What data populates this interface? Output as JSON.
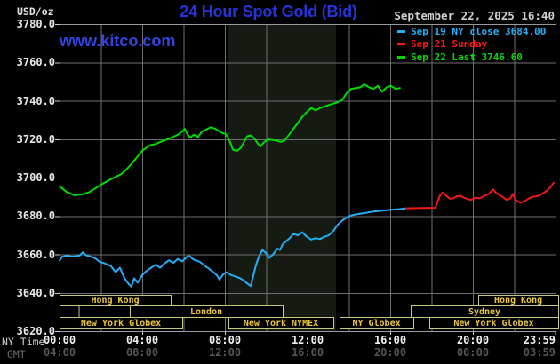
{
  "header": {
    "units": "USD/oz",
    "title": "24 Hour Spot Gold (Bid)",
    "datetime": "September 22, 2025 16:40"
  },
  "watermark": {
    "text": "www.kitco.com"
  },
  "legend": {
    "items": [
      {
        "label": "Sep 19 NY close 3684.00",
        "color": "#25aef5"
      },
      {
        "label": "Sep 21 Sunday",
        "color": "#ff1515"
      },
      {
        "label": "Sep 22 Last 3746.60",
        "color": "#00dc00"
      }
    ]
  },
  "axes": {
    "ny_label": "NY Time",
    "gmt_label": "GMT",
    "ny_ticks": [
      {
        "t": 0,
        "text": "00:00"
      },
      {
        "t": 4,
        "text": "04:00"
      },
      {
        "t": 8,
        "text": "08:00"
      },
      {
        "t": 12,
        "text": "12:00"
      },
      {
        "t": 16,
        "text": "16:00"
      },
      {
        "t": 20,
        "text": "20:00"
      },
      {
        "t": 23.98,
        "lt": 23.22,
        "text": "23:59"
      }
    ],
    "gmt_ticks": [
      {
        "t": 0,
        "text": "04:00"
      },
      {
        "t": 4,
        "text": "08:00"
      },
      {
        "t": 8,
        "text": "12:00"
      },
      {
        "t": 12,
        "text": "16:00"
      },
      {
        "t": 16,
        "text": "20:00"
      },
      {
        "t": 20,
        "text": "00:00"
      },
      {
        "t": 23.98,
        "lt": 23.22,
        "text": "03:59"
      }
    ],
    "y_ticks": [
      {
        "v": 3780,
        "text": "3780.0"
      },
      {
        "v": 3760,
        "text": "3760.0"
      },
      {
        "v": 3740,
        "text": "3740.0"
      },
      {
        "v": 3720,
        "text": "3720.0"
      },
      {
        "v": 3700,
        "text": "3700.0"
      },
      {
        "v": 3680,
        "text": "3680.0"
      },
      {
        "v": 3660,
        "text": "3660.0"
      },
      {
        "v": 3640,
        "text": "3640.0"
      },
      {
        "v": 3620,
        "text": "3620.0"
      }
    ]
  },
  "market_sessions": {
    "rows": [
      {
        "row": 1,
        "boxes": [
          {
            "start": 0,
            "end": 5.38,
            "label": "Hong Kong"
          },
          {
            "start": 20.26,
            "end": 24.13,
            "label": "Hong Kong"
          }
        ]
      },
      {
        "row": 2,
        "boxes": [
          {
            "start": 0,
            "end": 0.92,
            "label": ""
          },
          {
            "start": 0.92,
            "end": 3.4,
            "label": ""
          },
          {
            "start": 3.4,
            "end": 10.8,
            "label": "London"
          },
          {
            "start": 16.99,
            "end": 24.13,
            "label": "Sydney"
          }
        ]
      },
      {
        "row": 3,
        "boxes": [
          {
            "start": 0,
            "end": 5.94,
            "label": "New York Globex"
          },
          {
            "start": 8.17,
            "end": 13.25,
            "label": "New York NYMEX"
          },
          {
            "start": 13.55,
            "end": 17.12,
            "label": "NY Globex"
          },
          {
            "start": 17.89,
            "end": 24.13,
            "label": "New York Globex"
          }
        ]
      }
    ]
  },
  "colors": {
    "background": "#000000",
    "grid": "#6f6f6f",
    "plot_border": "#9a9a9a",
    "tick": "#cccccc",
    "band": "#151a12",
    "title_blue": "#2634d9",
    "watermark_blue": "#3245e2",
    "date_text": "#d0d0d0",
    "session_border": "#c9c97e",
    "session_text": "#eac73e"
  },
  "chart_data": {
    "type": "line",
    "title": "24 Hour Spot Gold (Bid)",
    "ylabel": "USD/oz",
    "xlabel": "NY Time (hours)",
    "xlim": [
      0,
      24
    ],
    "ylim": [
      3620,
      3780
    ],
    "y_grid_step": 20,
    "x_grid_step_hours": 2,
    "band_hours": [
      8.17,
      13.38
    ],
    "series": [
      {
        "name": "Sep 19 NY close",
        "color": "#25aef5",
        "points": [
          [
            0,
            3656.8
          ],
          [
            0.13,
            3658.8
          ],
          [
            0.34,
            3659.3
          ],
          [
            0.56,
            3658.9
          ],
          [
            0.77,
            3659
          ],
          [
            0.99,
            3659.5
          ],
          [
            1.12,
            3661
          ],
          [
            1.29,
            3659.5
          ],
          [
            1.51,
            3658.8
          ],
          [
            1.72,
            3658
          ],
          [
            1.94,
            3656.1
          ],
          [
            2.19,
            3655.3
          ],
          [
            2.49,
            3653.8
          ],
          [
            2.71,
            3650.7
          ],
          [
            2.92,
            3653
          ],
          [
            3.14,
            3647.6
          ],
          [
            3.35,
            3644.5
          ],
          [
            3.48,
            3643.2
          ],
          [
            3.61,
            3647.5
          ],
          [
            3.78,
            3645.3
          ],
          [
            4,
            3649.2
          ],
          [
            4.22,
            3651.5
          ],
          [
            4.43,
            3653
          ],
          [
            4.65,
            3654.6
          ],
          [
            4.86,
            3653
          ],
          [
            5.08,
            3655.3
          ],
          [
            5.29,
            3656.9
          ],
          [
            5.51,
            3655.6
          ],
          [
            5.72,
            3657.6
          ],
          [
            5.94,
            3656.4
          ],
          [
            6.15,
            3658.6
          ],
          [
            6.28,
            3659.2
          ],
          [
            6.45,
            3657.5
          ],
          [
            6.58,
            3656.9
          ],
          [
            6.8,
            3656
          ],
          [
            7.01,
            3654.2
          ],
          [
            7.23,
            3652.5
          ],
          [
            7.44,
            3650.7
          ],
          [
            7.61,
            3649.2
          ],
          [
            7.74,
            3646.8
          ],
          [
            7.91,
            3649.5
          ],
          [
            8.09,
            3650.7
          ],
          [
            8.3,
            3649.2
          ],
          [
            8.52,
            3648.5
          ],
          [
            8.73,
            3647.6
          ],
          [
            8.9,
            3646.5
          ],
          [
            9.08,
            3644.9
          ],
          [
            9.25,
            3643.5
          ],
          [
            9.38,
            3649.2
          ],
          [
            9.51,
            3654.6
          ],
          [
            9.63,
            3658.4
          ],
          [
            9.81,
            3662.3
          ],
          [
            9.98,
            3660.7
          ],
          [
            10.15,
            3658.1
          ],
          [
            10.32,
            3659.8
          ],
          [
            10.54,
            3663
          ],
          [
            10.67,
            3662.3
          ],
          [
            10.8,
            3665.3
          ],
          [
            10.97,
            3666.9
          ],
          [
            11.14,
            3668.5
          ],
          [
            11.31,
            3670.7
          ],
          [
            11.53,
            3669.9
          ],
          [
            11.74,
            3671.5
          ],
          [
            11.96,
            3669.2
          ],
          [
            12.17,
            3667.7
          ],
          [
            12.39,
            3668.4
          ],
          [
            12.6,
            3668
          ],
          [
            12.82,
            3669.2
          ],
          [
            13.03,
            3669.9
          ],
          [
            13.25,
            3672.3
          ],
          [
            13.46,
            3675.4
          ],
          [
            13.68,
            3677.7
          ],
          [
            13.89,
            3679.2
          ],
          [
            14.11,
            3680.3
          ],
          [
            14.32,
            3680.8
          ],
          [
            14.75,
            3681.5
          ],
          [
            15.18,
            3682.3
          ],
          [
            15.61,
            3682.8
          ],
          [
            16.04,
            3683.2
          ],
          [
            16.47,
            3683.6
          ],
          [
            16.77,
            3684
          ]
        ]
      },
      {
        "name": "Sep 21 Sunday",
        "color": "#f21818",
        "points": [
          [
            16.77,
            3684
          ],
          [
            17.33,
            3684.1
          ],
          [
            18.19,
            3684.3
          ],
          [
            18.28,
            3687
          ],
          [
            18.41,
            3690.7
          ],
          [
            18.54,
            3692.3
          ],
          [
            18.71,
            3690.5
          ],
          [
            18.88,
            3689
          ],
          [
            19.05,
            3689.2
          ],
          [
            19.23,
            3690.3
          ],
          [
            19.4,
            3690.5
          ],
          [
            19.57,
            3689.5
          ],
          [
            19.74,
            3688.8
          ],
          [
            19.91,
            3688.4
          ],
          [
            20.13,
            3689.5
          ],
          [
            20.34,
            3689.2
          ],
          [
            20.56,
            3690.5
          ],
          [
            20.77,
            3691.5
          ],
          [
            20.99,
            3693.8
          ],
          [
            21.12,
            3692
          ],
          [
            21.2,
            3691.5
          ],
          [
            21.42,
            3690
          ],
          [
            21.63,
            3688.4
          ],
          [
            21.81,
            3689.2
          ],
          [
            21.94,
            3691.5
          ],
          [
            22.06,
            3688.4
          ],
          [
            22.28,
            3686.9
          ],
          [
            22.49,
            3687.6
          ],
          [
            22.71,
            3689.2
          ],
          [
            22.92,
            3690
          ],
          [
            23.14,
            3690.4
          ],
          [
            23.35,
            3691.5
          ],
          [
            23.57,
            3693
          ],
          [
            23.78,
            3695.4
          ],
          [
            23.91,
            3697.3
          ]
        ]
      },
      {
        "name": "Sep 22 Last",
        "color": "#00dc00",
        "points": [
          [
            0,
            3695.5
          ],
          [
            0.34,
            3692.5
          ],
          [
            0.73,
            3690.8
          ],
          [
            1.08,
            3691.2
          ],
          [
            1.42,
            3692.3
          ],
          [
            1.76,
            3694.6
          ],
          [
            2.11,
            3697
          ],
          [
            2.45,
            3699
          ],
          [
            2.75,
            3700.5
          ],
          [
            3.01,
            3702
          ],
          [
            3.35,
            3705.5
          ],
          [
            3.66,
            3709.5
          ],
          [
            4,
            3714
          ],
          [
            4.26,
            3716
          ],
          [
            4.43,
            3717
          ],
          [
            4.65,
            3717.4
          ],
          [
            4.86,
            3718.5
          ],
          [
            5.12,
            3719.5
          ],
          [
            5.42,
            3720.8
          ],
          [
            5.72,
            3722.3
          ],
          [
            5.94,
            3724
          ],
          [
            6.06,
            3725.4
          ],
          [
            6.19,
            3722.5
          ],
          [
            6.32,
            3720.8
          ],
          [
            6.49,
            3722.3
          ],
          [
            6.71,
            3721.2
          ],
          [
            6.88,
            3723.9
          ],
          [
            7.1,
            3725
          ],
          [
            7.31,
            3726.2
          ],
          [
            7.53,
            3725.5
          ],
          [
            7.7,
            3724.3
          ],
          [
            7.87,
            3723.2
          ],
          [
            8.04,
            3722.8
          ],
          [
            8.22,
            3719.2
          ],
          [
            8.39,
            3714.5
          ],
          [
            8.6,
            3713.9
          ],
          [
            8.77,
            3715.5
          ],
          [
            8.95,
            3719
          ],
          [
            9.08,
            3721.5
          ],
          [
            9.25,
            3722
          ],
          [
            9.42,
            3720.4
          ],
          [
            9.59,
            3717.7
          ],
          [
            9.72,
            3716.2
          ],
          [
            9.89,
            3718.3
          ],
          [
            10.06,
            3719.8
          ],
          [
            10.28,
            3719.6
          ],
          [
            10.49,
            3719.2
          ],
          [
            10.71,
            3718.6
          ],
          [
            10.88,
            3719.2
          ],
          [
            11.1,
            3722.3
          ],
          [
            11.31,
            3725.4
          ],
          [
            11.53,
            3728.5
          ],
          [
            11.74,
            3731.6
          ],
          [
            11.96,
            3734
          ],
          [
            12.17,
            3736.2
          ],
          [
            12.39,
            3735
          ],
          [
            12.6,
            3736.2
          ],
          [
            12.82,
            3737
          ],
          [
            13.03,
            3737.8
          ],
          [
            13.25,
            3738.5
          ],
          [
            13.46,
            3739.3
          ],
          [
            13.68,
            3740.5
          ],
          [
            13.89,
            3743.9
          ],
          [
            14.11,
            3746.2
          ],
          [
            14.32,
            3746.5
          ],
          [
            14.54,
            3747
          ],
          [
            14.75,
            3748.5
          ],
          [
            14.97,
            3747
          ],
          [
            15.18,
            3746.2
          ],
          [
            15.4,
            3747.7
          ],
          [
            15.61,
            3744.7
          ],
          [
            15.83,
            3747
          ],
          [
            16.04,
            3747.7
          ],
          [
            16.26,
            3746.2
          ],
          [
            16.47,
            3746.6
          ]
        ]
      }
    ]
  }
}
